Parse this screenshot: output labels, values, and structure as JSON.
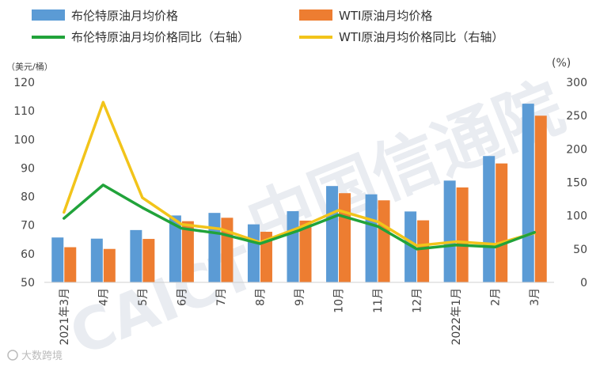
{
  "chart_data": {
    "type": "bar",
    "title": "",
    "categories": [
      "2021年3月",
      "4月",
      "5月",
      "6月",
      "7月",
      "8月",
      "9月",
      "10月",
      "11月",
      "12月",
      "2022年1月",
      "2月",
      "3月"
    ],
    "left_axis": {
      "unit_label": "（美元/桶）",
      "ylim": [
        50,
        120
      ],
      "ticks": [
        50,
        60,
        70,
        80,
        90,
        100,
        110,
        120
      ]
    },
    "right_axis": {
      "unit_label": "(%)",
      "ylim": [
        0,
        300
      ],
      "ticks": [
        0,
        50,
        100,
        150,
        200,
        250,
        300
      ]
    },
    "series": [
      {
        "name": "布伦特原油月均价格",
        "type": "bar",
        "axis": "left",
        "color": "#5b9bd5",
        "values": [
          65.7,
          65.3,
          68.3,
          73.4,
          74.3,
          70.3,
          74.9,
          83.7,
          80.8,
          74.8,
          85.6,
          94.2,
          112.5
        ]
      },
      {
        "name": "WTI原油月均价格",
        "type": "bar",
        "axis": "left",
        "color": "#ed7d31",
        "values": [
          62.3,
          61.7,
          65.2,
          71.4,
          72.6,
          67.7,
          71.6,
          81.2,
          78.7,
          71.7,
          83.2,
          91.6,
          108.3
        ]
      },
      {
        "name": "布伦特原油月均价格同比（右轴）",
        "type": "line",
        "axis": "right",
        "color": "#21a33a",
        "values": [
          96,
          146,
          112,
          81,
          73,
          58,
          78,
          101,
          84,
          50,
          56,
          53,
          75
        ]
      },
      {
        "name": "WTI原油月均价格同比（右轴）",
        "type": "line",
        "axis": "right",
        "color": "#f2c41a",
        "values": [
          105,
          270,
          127,
          87,
          80,
          60,
          82,
          108,
          91,
          55,
          61,
          57,
          74
        ]
      }
    ]
  },
  "watermark": {
    "text": "中国信通院",
    "brand": "CAICT"
  },
  "footer": {
    "source_label": "大数跨境"
  }
}
